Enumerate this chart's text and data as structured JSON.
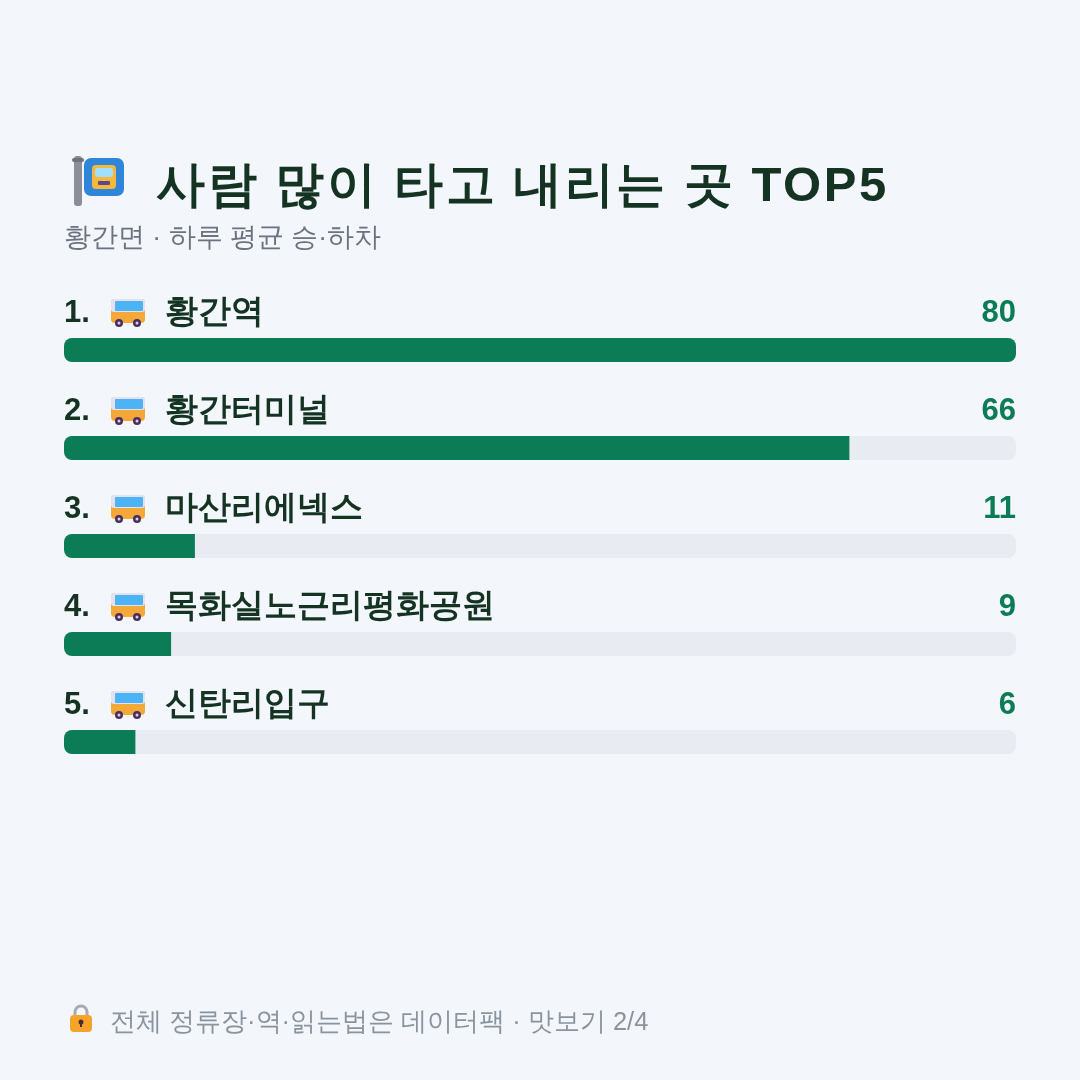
{
  "chart_data": {
    "type": "bar",
    "orientation": "horizontal",
    "title": "사람 많이 타고 내리는 곳 TOP5",
    "subtitle": "황간면 · 하루 평균 승·하차",
    "categories": [
      "1. 황간역",
      "2. 황간터미널",
      "3. 마산리에넥스",
      "4. 목화실노근리평화공원",
      "5. 신탄리입구"
    ],
    "values": [
      80,
      66,
      11,
      9,
      6
    ],
    "color": "#0b7c55",
    "data_labels": true,
    "annotations": [
      "전체 정류장·역·읽는법은 데이터팩 · 맛보기 2/4"
    ]
  }
}
